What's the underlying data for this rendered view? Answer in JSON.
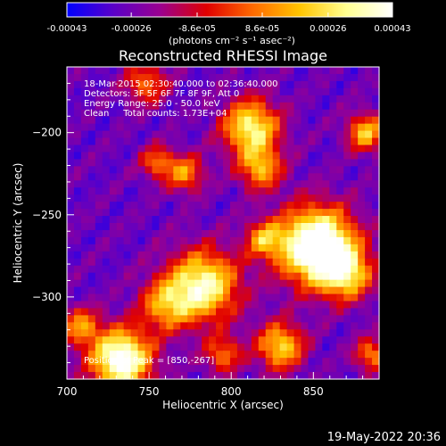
{
  "chart_data": {
    "type": "heatmap",
    "title": "Reconstructed RHESSI Image",
    "xlabel": "Heliocentric X (arcsec)",
    "ylabel": "Heliocentric Y (arcsec)",
    "xlim": [
      700,
      890
    ],
    "ylim": [
      -350,
      -160
    ],
    "x_ticks": [
      700,
      750,
      800,
      850
    ],
    "y_ticks": [
      -200,
      -250,
      -300
    ],
    "colorbar": {
      "ticks": [
        "-0.00043",
        "-0.00026",
        "-8.6e-05",
        "8.6e-05",
        "0.00026",
        "0.00043"
      ],
      "tick_values": [
        -0.00043,
        -0.00026,
        -8.6e-05,
        8.6e-05,
        0.00026,
        0.00043
      ],
      "units_label": "(photons cm⁻² s⁻¹ asec⁻²)",
      "colormap": [
        "#0000ff",
        "#5a00c8",
        "#9a0090",
        "#e00000",
        "#ff6a00",
        "#ffc400",
        "#ffff90",
        "#ffffff"
      ]
    },
    "annotations": [
      "18-Mar-2015 02:30:40.000 to 02:36:40.000",
      "Detectors: 3F 5F 6F 7F 8F 9F, Att 0",
      "Energy Range: 25.0 - 50.0 keV",
      "Clean     Total counts: 1.73E+04"
    ],
    "peak_label": "Position of Peak = [850,-267]",
    "peak": [
      850,
      -267
    ],
    "sources": [
      {
        "x": 852,
        "y": -269,
        "sigma": 16,
        "amp": 1.05
      },
      {
        "x": 870,
        "y": -286,
        "sigma": 11,
        "amp": 0.55
      },
      {
        "x": 783,
        "y": -293,
        "sigma": 15,
        "amp": 0.75
      },
      {
        "x": 760,
        "y": -305,
        "sigma": 11,
        "amp": 0.45
      },
      {
        "x": 733,
        "y": -338,
        "sigma": 13,
        "amp": 0.9
      },
      {
        "x": 708,
        "y": -318,
        "sigma": 8,
        "amp": 0.45
      },
      {
        "x": 812,
        "y": -197,
        "sigma": 12,
        "amp": 0.7
      },
      {
        "x": 818,
        "y": -222,
        "sigma": 9,
        "amp": 0.5
      },
      {
        "x": 820,
        "y": -265,
        "sigma": 8,
        "amp": 0.45
      },
      {
        "x": 830,
        "y": -330,
        "sigma": 10,
        "amp": 0.6
      },
      {
        "x": 772,
        "y": -225,
        "sigma": 8,
        "amp": 0.45
      },
      {
        "x": 755,
        "y": -218,
        "sigma": 7,
        "amp": 0.4
      },
      {
        "x": 748,
        "y": -170,
        "sigma": 9,
        "amp": 0.4
      },
      {
        "x": 882,
        "y": -200,
        "sigma": 8,
        "amp": 0.55
      },
      {
        "x": 885,
        "y": -335,
        "sigma": 7,
        "amp": 0.45
      },
      {
        "x": 795,
        "y": -335,
        "sigma": 8,
        "amp": 0.4
      }
    ]
  },
  "footer": {
    "date": "19-May-2022 20:36"
  }
}
